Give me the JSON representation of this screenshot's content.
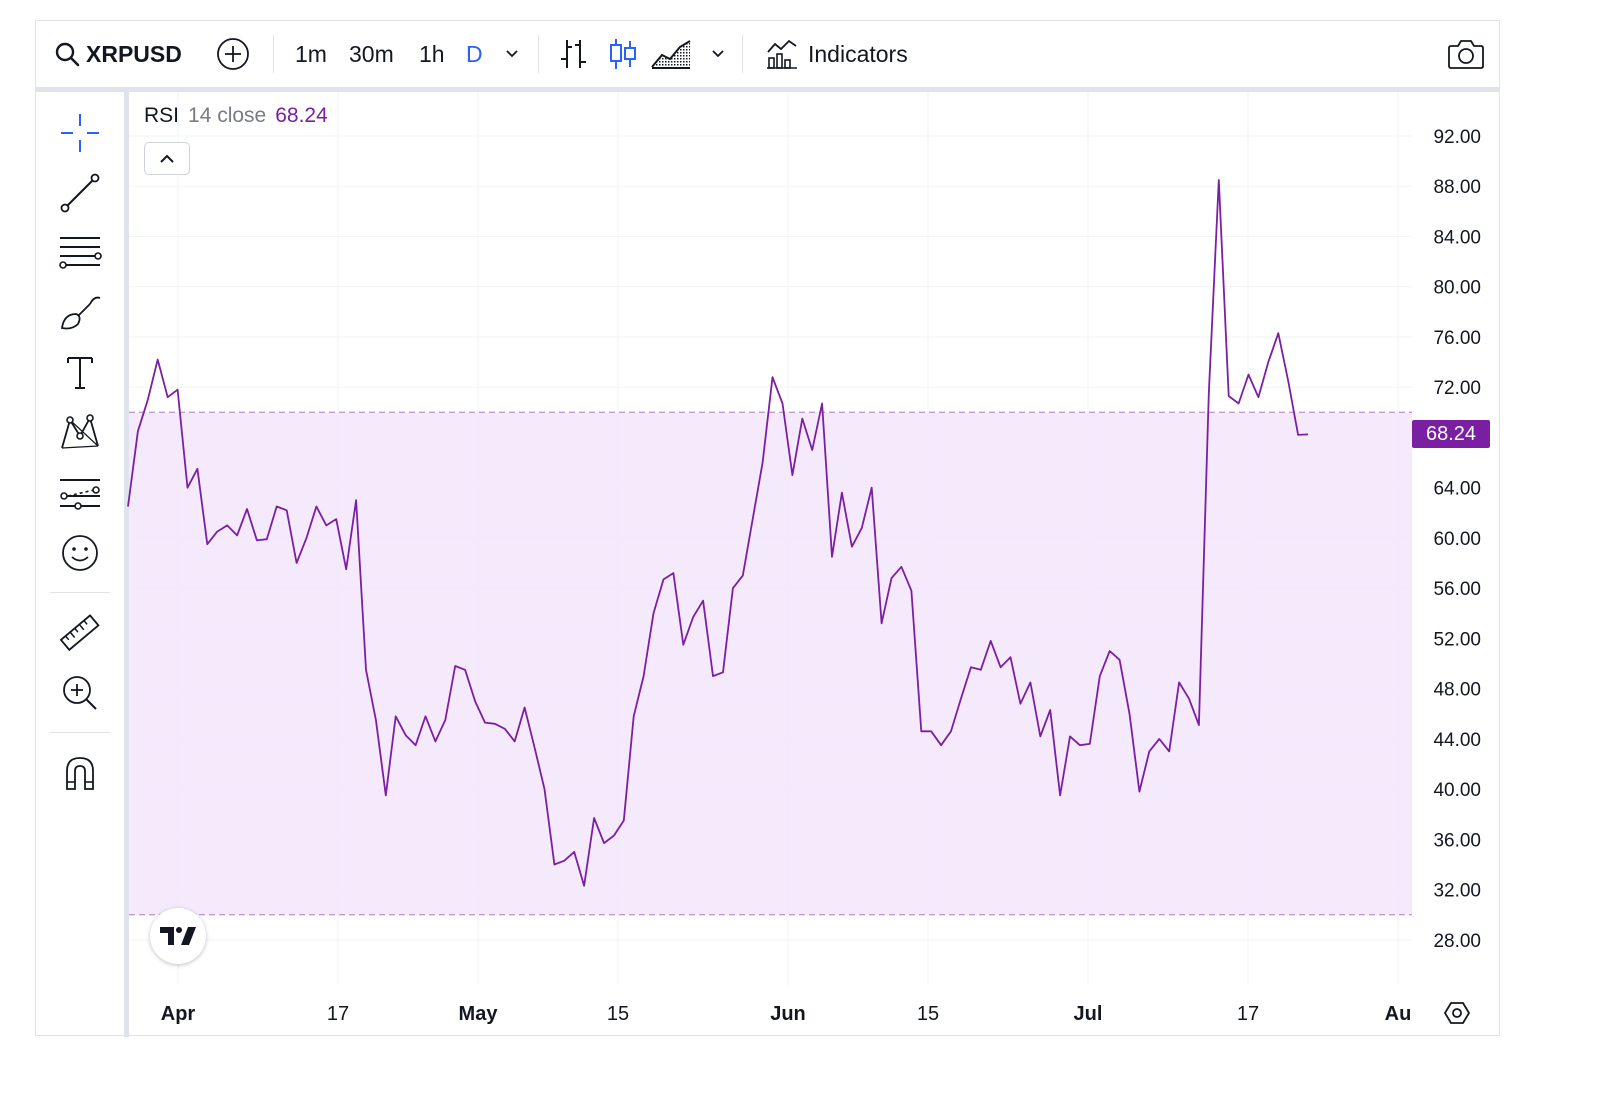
{
  "toolbar": {
    "symbol": "XRPUSD",
    "intervals": [
      "1m",
      "30m",
      "1h",
      "D"
    ],
    "active_interval": "D",
    "indicators_label": "Indicators",
    "icons": [
      "search-icon",
      "add-compare-icon",
      "chevron-down-icon",
      "bar-chart-icon",
      "candlestick-icon",
      "area-chart-icon",
      "indicators-icon",
      "camera-icon"
    ]
  },
  "sidebar": {
    "tools": [
      "crosshair-icon",
      "trend-line-icon",
      "fib-levels-icon",
      "brush-icon",
      "text-icon",
      "pattern-icon",
      "forecast-icon",
      "emoji-icon",
      "ruler-icon",
      "zoom-in-icon",
      "magnet-icon"
    ]
  },
  "legend": {
    "name": "RSI",
    "params": "14 close",
    "value": "68.24"
  },
  "colors": {
    "line": "#7b1fa2",
    "band_fill": "#f3e5fc",
    "band_border": "#c39bd3",
    "active": "#2962ff"
  },
  "chart_data": {
    "type": "line",
    "title": "RSI",
    "series": [
      {
        "values": [
          62.5,
          68.5,
          71.0,
          74.2,
          71.2,
          71.8,
          64.0,
          65.5,
          59.5,
          60.5,
          61.0,
          60.2,
          62.3,
          59.8,
          59.9,
          62.5,
          62.2,
          58.0,
          60.0,
          62.5,
          61.0,
          61.5,
          57.5,
          63.0,
          49.5,
          45.5,
          39.5,
          45.8,
          44.3,
          43.5,
          45.8,
          43.8,
          45.5,
          49.8,
          49.5,
          47.0,
          45.3,
          45.2,
          44.8,
          43.8,
          46.5,
          43.3,
          40.0,
          34.0,
          34.3,
          35.0,
          32.3,
          37.7,
          35.7,
          36.3,
          37.5,
          45.8,
          49.0,
          54.0,
          56.7,
          57.2,
          51.5,
          53.7,
          55.0,
          49.0,
          49.3,
          56.0,
          57.0,
          61.5,
          66.0,
          72.8,
          70.7,
          65.0,
          69.5,
          67.0,
          70.7,
          58.5,
          63.6,
          59.3,
          60.8,
          64.0,
          53.2,
          56.8,
          57.7,
          55.8,
          44.6,
          44.6,
          43.5,
          44.6,
          47.2,
          49.7,
          49.5,
          51.8,
          49.7,
          50.5,
          46.8,
          48.5,
          44.2,
          46.3,
          39.5,
          44.2,
          43.5,
          43.6,
          49.0,
          51.0,
          50.3,
          46.0,
          39.8,
          43.0,
          44.0,
          43.0,
          48.5,
          47.2,
          45.1,
          71.5,
          88.5,
          71.3,
          70.7,
          73.0,
          71.2,
          74.0,
          76.3,
          72.5,
          68.2,
          68.24
        ],
        "x_range": [
          "2024-03-27",
          "2024-07-23"
        ]
      }
    ],
    "x_ticks": [
      "Apr",
      "17",
      "May",
      "15",
      "Jun",
      "15",
      "Jul",
      "17",
      "Au"
    ],
    "y_ticks": [
      "92.00",
      "88.00",
      "84.00",
      "80.00",
      "76.00",
      "72.00",
      "64.00",
      "60.00",
      "56.00",
      "52.00",
      "48.00",
      "44.00",
      "40.00",
      "36.00",
      "32.00",
      "28.00"
    ],
    "ylim": [
      25,
      95
    ],
    "bands": {
      "upper": 70,
      "lower": 30
    },
    "last_value": "68.24",
    "grid": true
  }
}
